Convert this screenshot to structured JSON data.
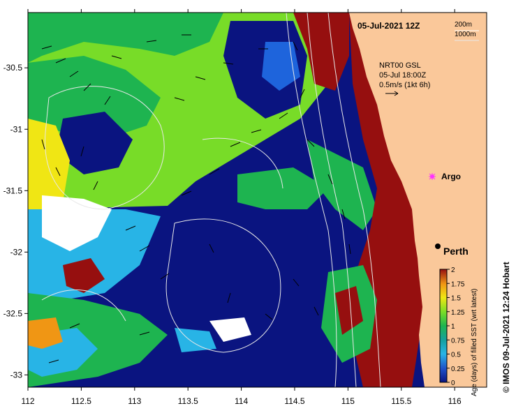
{
  "header": {
    "date_title": "05-Jul-2021 12Z",
    "depth_labels": [
      "200m",
      "1000m"
    ]
  },
  "current_note": {
    "lines": [
      "NRT00 GSL",
      "05-Jul 18:00Z",
      "0.5m/s (1kt 6h)"
    ]
  },
  "places": [
    {
      "name": "Argo",
      "lon": 115.9,
      "lat": -31.45,
      "marker": "magenta-star",
      "color": "#ff33ff"
    },
    {
      "name": "Perth",
      "lon": 115.86,
      "lat": -31.95,
      "marker": "black-dot",
      "color": "#000000"
    }
  ],
  "axes": {
    "x_ticks": [
      "112",
      "112.5",
      "113",
      "113.5",
      "114",
      "114.5",
      "115",
      "115.5",
      "116"
    ],
    "x_values": [
      112,
      112.5,
      113,
      113.5,
      114,
      114.5,
      115,
      115.5,
      116
    ],
    "y_ticks": [
      "-30.5",
      "-31",
      "-31.5",
      "-32",
      "-32.5",
      "-33"
    ],
    "y_values": [
      -30.5,
      -31,
      -31.5,
      -32,
      -32.5,
      -33
    ],
    "lon_range": [
      112,
      116.3
    ],
    "lat_range": [
      -33.1,
      -30.05
    ]
  },
  "colorbar": {
    "label": "Age (days) of filled SST (wrt latest)",
    "tick_labels": [
      "2",
      "1.75",
      "1.5",
      "1.25",
      "1",
      "0.75",
      "0.5",
      "0.25",
      "0"
    ],
    "tick_values": [
      2,
      1.75,
      1.5,
      1.25,
      1,
      0.75,
      0.5,
      0.25,
      0
    ],
    "range": [
      0,
      2
    ],
    "colors": [
      "#0a1480",
      "#1e64dc",
      "#28b4e6",
      "#14a0a0",
      "#1eb450",
      "#78dc28",
      "#f0e614",
      "#f09614",
      "#960f0f"
    ]
  },
  "credit": "© IMOS 09-Jul-2021 12:24 Hobart",
  "colors": {
    "land": "#fac89a",
    "no_data": "#ffffff",
    "contours": "#e8e8e8",
    "arrows": "#000000"
  }
}
